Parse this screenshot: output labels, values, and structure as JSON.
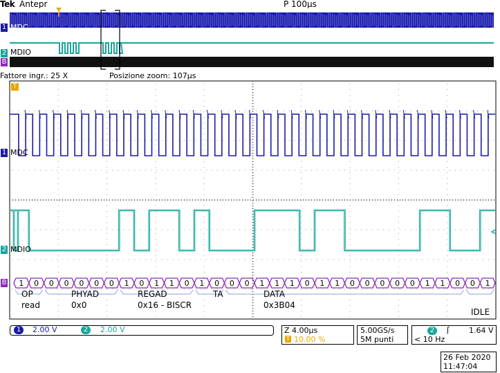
{
  "header": {
    "brand": "Tek",
    "mode": "Antepr",
    "timebase": "P 100µs"
  },
  "overview": {
    "ch1_label": "MDC",
    "ch2_label": "MDIO"
  },
  "zoom_info": {
    "factor": "Fattore ingr.: 25 X",
    "position": "Posizione zoom: 107µs"
  },
  "channels": {
    "ch1": {
      "name": "MDC",
      "marker": "1",
      "color": "#1a1aa6"
    },
    "ch2": {
      "name": "MDIO",
      "marker": "2",
      "color": "#1aa59a"
    },
    "bus": {
      "marker": "B",
      "color": "#8a2bb8"
    }
  },
  "bus_bits": [
    "1",
    "0",
    "0",
    "0",
    "0",
    "0",
    "0",
    "1",
    "0",
    "1",
    "1",
    "0",
    "1",
    "0",
    "0",
    "0",
    "1",
    "1",
    "1",
    "0",
    "1",
    "1",
    "0",
    "0",
    "0",
    "0",
    "0",
    "1",
    "1",
    "0",
    "0",
    "1"
  ],
  "decode": {
    "op": {
      "name": "OP",
      "value": "read"
    },
    "phyad": {
      "name": "PHYAD",
      "value": "0x0"
    },
    "regad": {
      "name": "REGAD",
      "value": "0x16 - BISCR"
    },
    "ta": {
      "name": "TA"
    },
    "data": {
      "name": "DATA",
      "value": "0x3B04"
    },
    "idle": "IDLE"
  },
  "trigger_marker": "T",
  "status": {
    "ch1_scale": "2.00 V",
    "ch2_scale": "2.00 V",
    "horizontal": "Z 4.00µs",
    "horizontal_pos": "10.00 %",
    "sample_rate": "5.00GS/s",
    "record_length": "5M punti",
    "trig_channel": "2",
    "trig_slope": "ʃ",
    "trig_level": "1.64 V",
    "trig_freq": "< 10 Hz"
  },
  "datetime": {
    "date": "26 Feb 2020",
    "time": "11:47:04"
  }
}
